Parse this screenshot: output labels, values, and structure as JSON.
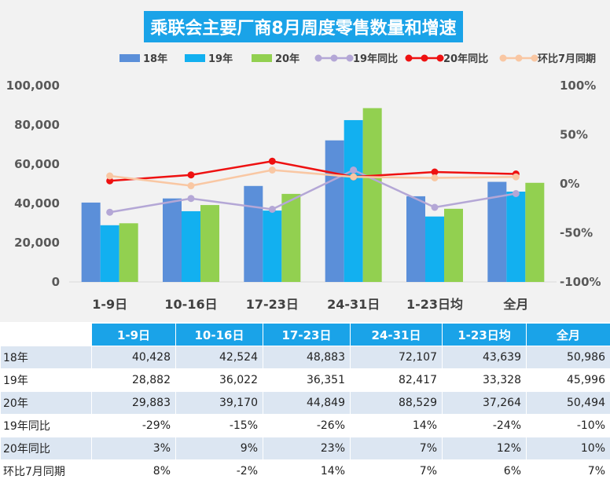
{
  "title": "乘联会主要厂商8月周度零售数量和增速",
  "legend": [
    {
      "label": "18年",
      "kind": "bar",
      "color": "#5b8fd9"
    },
    {
      "label": "19年",
      "kind": "bar",
      "color": "#12b0f0"
    },
    {
      "label": "20年",
      "kind": "bar",
      "color": "#92d050"
    },
    {
      "label": "19年同比",
      "kind": "line",
      "color": "#b4a7d6"
    },
    {
      "label": "20年同比",
      "kind": "line",
      "color": "#ee1111"
    },
    {
      "label": "环比7月同期",
      "kind": "line",
      "color": "#f9c7a3"
    }
  ],
  "chart_data": {
    "type": "bar",
    "categories": [
      "1-9日",
      "10-16日",
      "17-23日",
      "24-31日",
      "1-23日均",
      "全月"
    ],
    "series": [
      {
        "name": "18年",
        "type": "bar",
        "axis": "left",
        "values": [
          40428,
          42524,
          48883,
          72107,
          43639,
          50986
        ]
      },
      {
        "name": "19年",
        "type": "bar",
        "axis": "left",
        "values": [
          28882,
          36022,
          36351,
          82417,
          33328,
          45996
        ]
      },
      {
        "name": "20年",
        "type": "bar",
        "axis": "left",
        "values": [
          29883,
          39170,
          44849,
          88529,
          37264,
          50494
        ]
      },
      {
        "name": "19年同比",
        "type": "line",
        "axis": "right",
        "values": [
          -29,
          -15,
          -26,
          14,
          -24,
          -10
        ]
      },
      {
        "name": "20年同比",
        "type": "line",
        "axis": "right",
        "values": [
          3,
          9,
          23,
          7,
          12,
          10
        ]
      },
      {
        "name": "环比7月同期",
        "type": "line",
        "axis": "right",
        "values": [
          8,
          -2,
          14,
          7,
          6,
          7
        ]
      }
    ],
    "y_left": {
      "min": 0,
      "max": 100000,
      "ticks": [
        "0",
        "20,000",
        "40,000",
        "60,000",
        "80,000",
        "100,000"
      ]
    },
    "y_right": {
      "min": -100,
      "max": 100,
      "ticks": [
        "-100%",
        "-50%",
        "0%",
        "50%",
        "100%"
      ]
    },
    "legend_position": "top",
    "grid": false
  },
  "table": {
    "headers": [
      "1-9日",
      "10-16日",
      "17-23日",
      "24-31日",
      "1-23日均",
      "全月"
    ],
    "rows": [
      {
        "label": "18年",
        "cells": [
          "40,428",
          "42,524",
          "48,883",
          "72,107",
          "43,639",
          "50,986"
        ]
      },
      {
        "label": "19年",
        "cells": [
          "28,882",
          "36,022",
          "36,351",
          "82,417",
          "33,328",
          "45,996"
        ]
      },
      {
        "label": "20年",
        "cells": [
          "29,883",
          "39,170",
          "44,849",
          "88,529",
          "37,264",
          "50,494"
        ]
      },
      {
        "label": "19年同比",
        "cells": [
          "-29%",
          "-15%",
          "-26%",
          "14%",
          "-24%",
          "-10%"
        ]
      },
      {
        "label": "20年同比",
        "cells": [
          "3%",
          "9%",
          "23%",
          "7%",
          "12%",
          "10%"
        ]
      },
      {
        "label": "环比7月同期",
        "cells": [
          "8%",
          "-2%",
          "14%",
          "7%",
          "6%",
          "7%"
        ]
      }
    ]
  }
}
